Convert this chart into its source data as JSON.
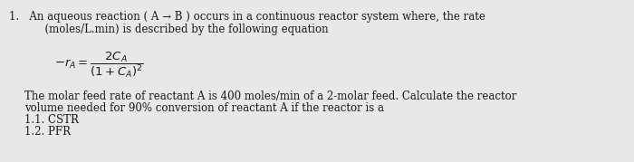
{
  "background_color": "#e8e8e8",
  "text_color": "#1a1a1a",
  "line1": "1.   An aqueous reaction ( A → B ) occurs in a continuous reactor system where, the rate",
  "line2": "      (moles/L.min) is described by the following equation",
  "equation": "$-r_{A} = \\dfrac{2C_{A}}{(1+C_{A})^{2}}$",
  "body_line1": "The molar feed rate of reactant A is 400 moles/min of a 2-molar feed. Calculate the reactor",
  "body_line2": "volume needed for 90% conversion of reactant A if the reactor is a",
  "item1": "1.1. CSTR",
  "item2": "1.2. PFR",
  "fontsize_main": 8.5,
  "fontsize_eq": 9.5,
  "bg": "#e0e0e0"
}
